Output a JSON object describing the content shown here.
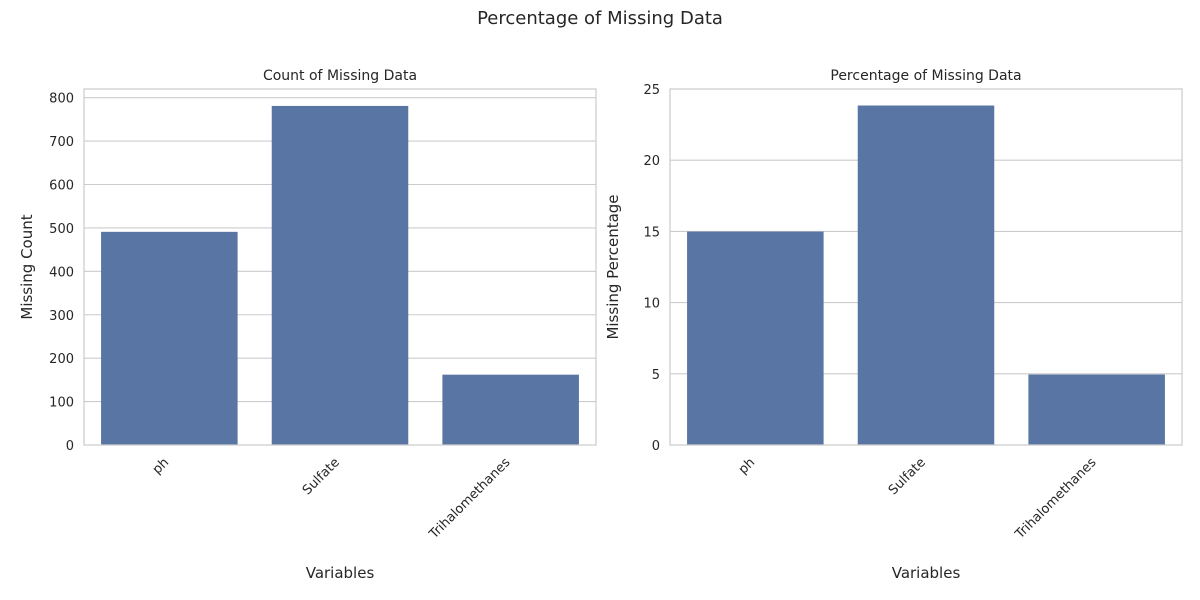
{
  "figure": {
    "suptitle": "Percentage of Missing Data"
  },
  "style": {
    "bar_color": "#5975a4",
    "grid_color": "#cccccc",
    "axes_color": "#cccccc",
    "text_color": "#262626"
  },
  "chart_data": [
    {
      "type": "bar",
      "title": "Count of Missing Data",
      "xlabel": "Variables",
      "ylabel": "Missing Count",
      "categories": [
        "ph",
        "Sulfate",
        "Trihalomethanes"
      ],
      "values": [
        491,
        781,
        162
      ],
      "ylim": [
        0,
        820
      ],
      "yticks": [
        0,
        100,
        200,
        300,
        400,
        500,
        600,
        700,
        800
      ],
      "grid": true,
      "xtick_rotation": 45
    },
    {
      "type": "bar",
      "title": "Percentage of Missing Data",
      "xlabel": "Variables",
      "ylabel": "Missing Percentage",
      "categories": [
        "ph",
        "Sulfate",
        "Trihalomethanes"
      ],
      "values": [
        14.99,
        23.84,
        4.95
      ],
      "ylim": [
        0,
        25
      ],
      "yticks": [
        0,
        5,
        10,
        15,
        20,
        25
      ],
      "grid": true,
      "xtick_rotation": 45
    }
  ]
}
